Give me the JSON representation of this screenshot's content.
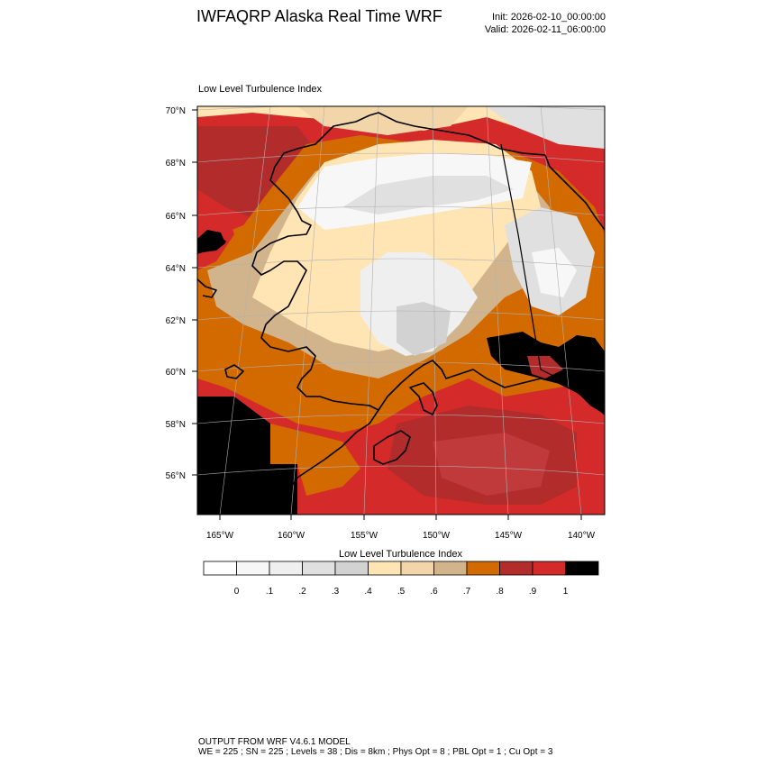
{
  "header": {
    "title": "IWFAQRP Alaska Real Time WRF",
    "init": "Init: 2026-02-10_00:00:00",
    "valid": "Valid: 2026-02-11_06:00:00"
  },
  "plot": {
    "title": "Low Level Turbulence Index"
  },
  "map": {
    "lat_labels": [
      "70°N",
      "68°N",
      "66°N",
      "64°N",
      "62°N",
      "60°N",
      "58°N",
      "56°N"
    ],
    "lon_labels": [
      "165°W",
      "160°W",
      "155°W",
      "150°W",
      "145°W",
      "140°W"
    ],
    "lat_values": [
      70,
      68,
      66,
      64,
      62,
      60,
      58,
      56
    ],
    "lon_values": [
      -165,
      -160,
      -155,
      -150,
      -145,
      -140
    ]
  },
  "colorbar": {
    "title": "Low Level Turbulence Index",
    "tick_labels": [
      "0",
      ".1",
      ".2",
      ".3",
      ".4",
      ".5",
      ".6",
      ".7",
      ".8",
      ".9",
      "1"
    ],
    "colors": [
      "#ffffff",
      "#f7f7f7",
      "#efefef",
      "#e0e0e0",
      "#d2d2d2",
      "#ffe4b4",
      "#f2d6aa",
      "#d2b48c",
      "#d26a00",
      "#b22c2c",
      "#d42a2a",
      "#000000"
    ]
  },
  "footer": {
    "line1": "OUTPUT FROM WRF V4.6.1 MODEL",
    "line2": "WE = 225 ; SN = 225 ; Levels = 38 ; Dis = 8km ; Phys Opt = 8 ; PBL Opt = 1 ; Cu Opt = 3"
  }
}
